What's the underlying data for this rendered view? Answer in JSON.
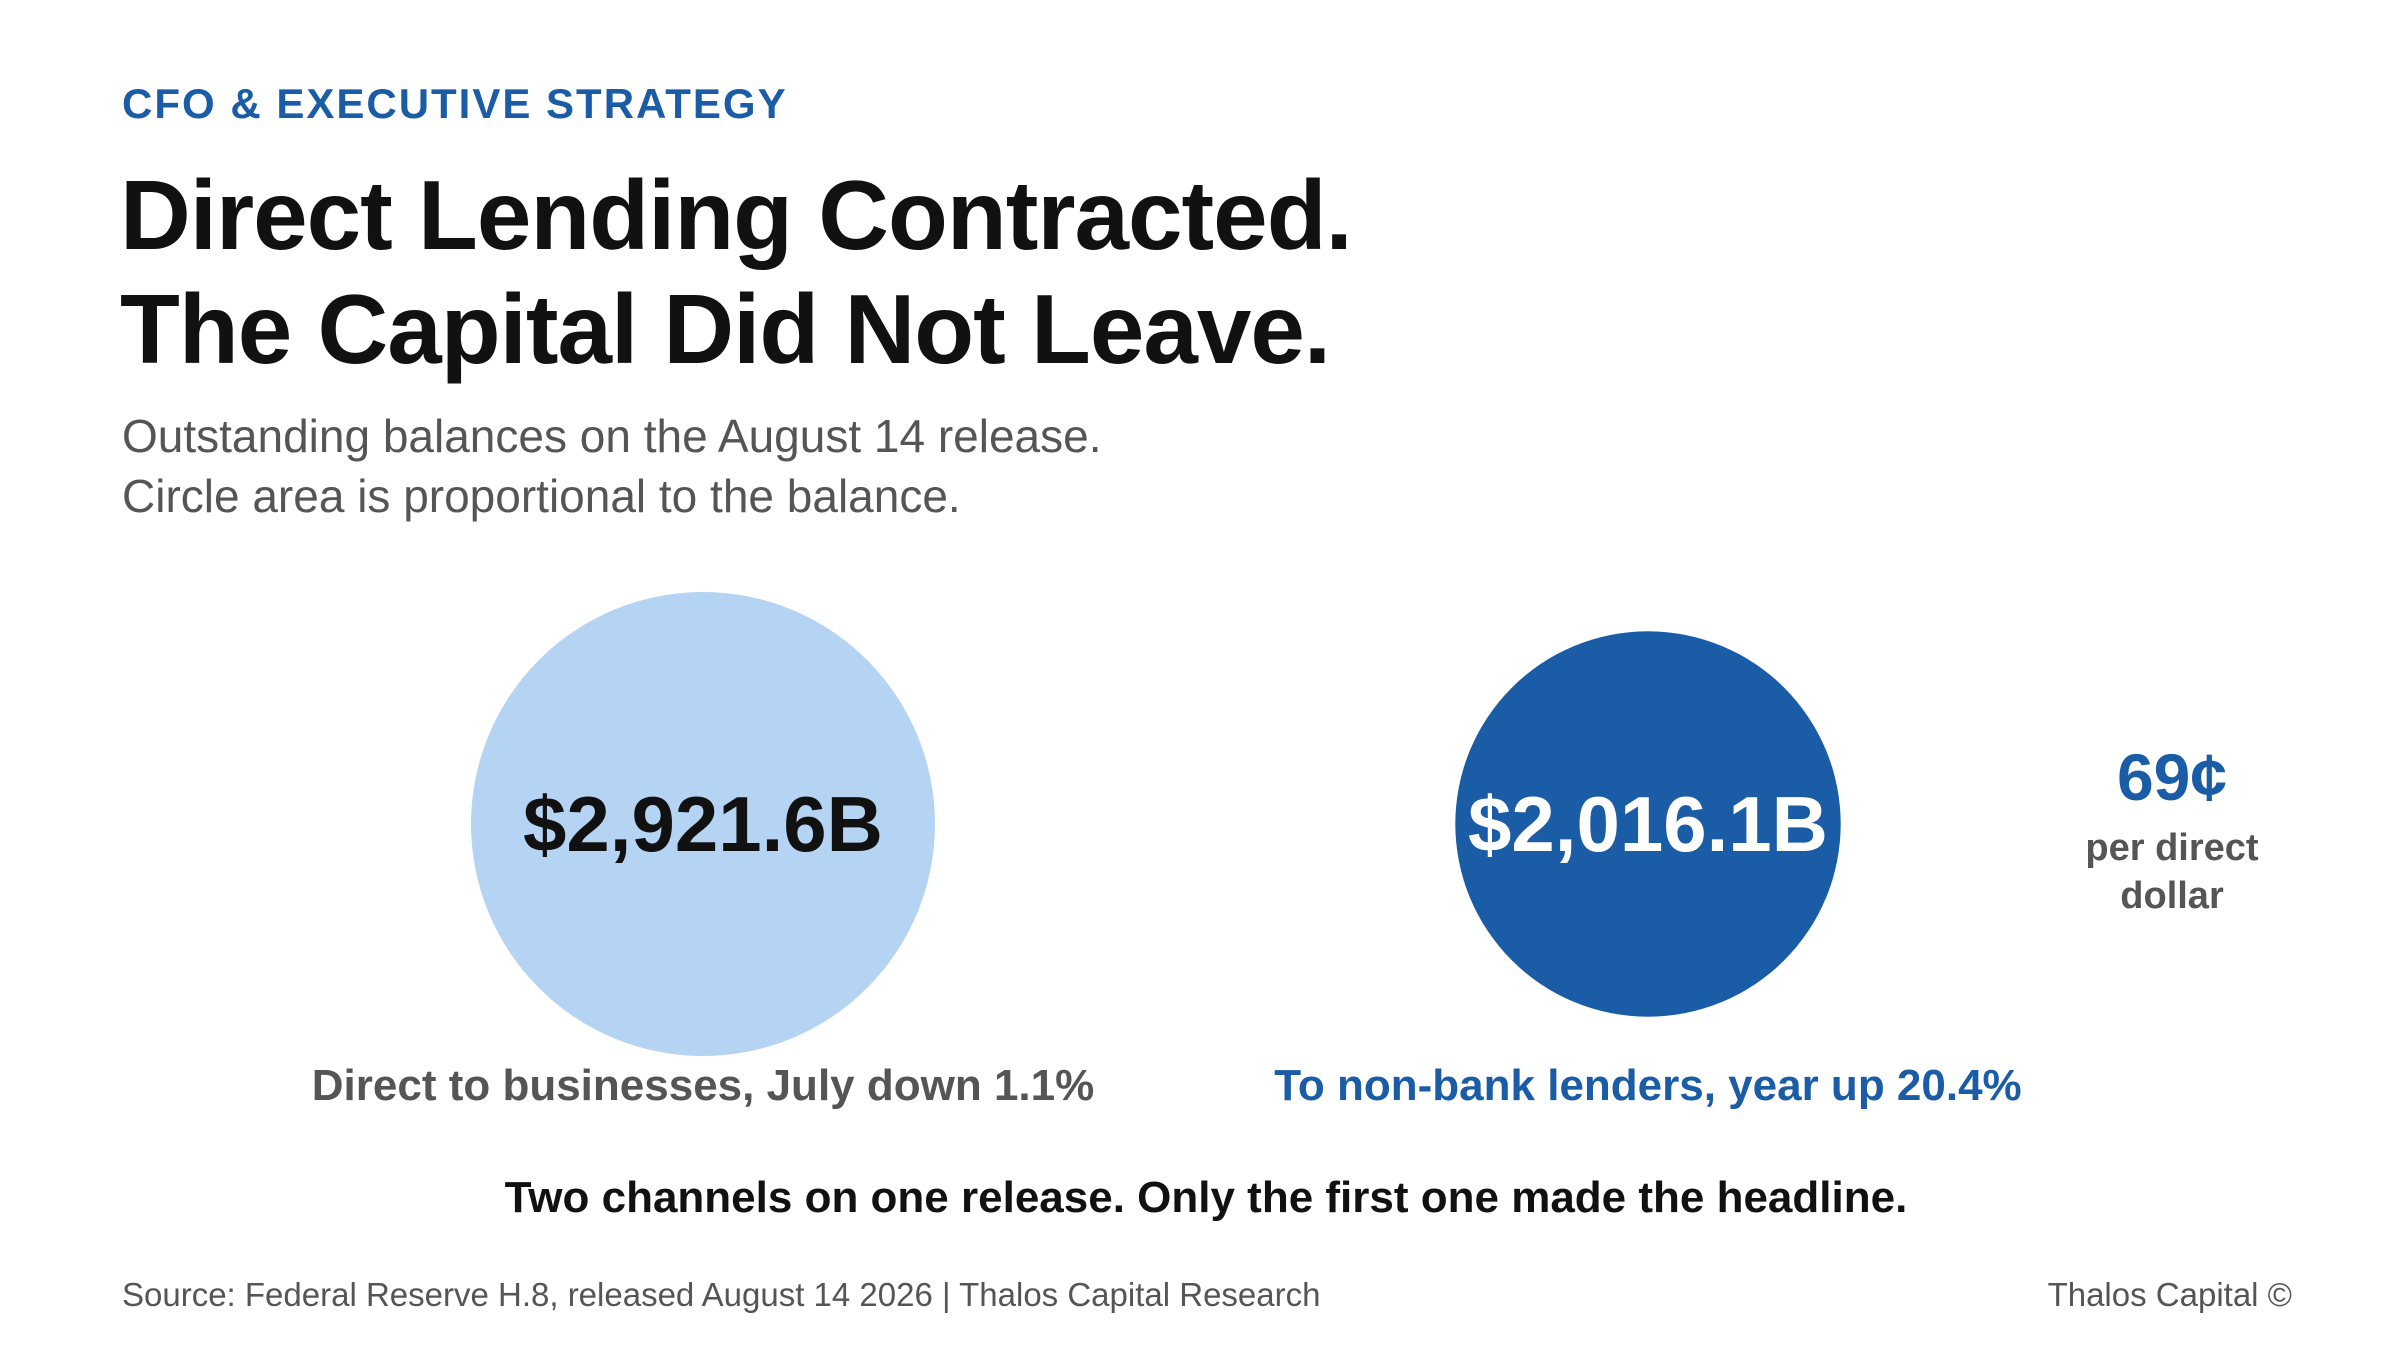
{
  "header": {
    "kicker": "CFO & EXECUTIVE STRATEGY",
    "title_line1": "Direct Lending Contracted.",
    "title_line2": "The Capital Did Not Leave.",
    "subtitle_line1": "Outstanding balances on the August 14 release.",
    "subtitle_line2": "Circle area is proportional to the balance."
  },
  "chart_data": {
    "type": "bubble",
    "title": "Direct Lending Contracted. The Capital Did Not Leave.",
    "unit": "$B",
    "series": [
      {
        "value": 2921.6,
        "value_label": "$2,921.6B",
        "caption": "Direct to businesses, July down 1.1%",
        "color": "#b5d3f3",
        "label_color": "#111111",
        "caption_color": "#555555"
      },
      {
        "value": 2016.1,
        "value_label": "$2,016.1B",
        "caption": "To non-bank lenders, year up 20.4%",
        "color": "#1a5da6",
        "label_color": "#ffffff",
        "caption_color": "#1a5da6"
      }
    ],
    "annotation": {
      "value": "69¢",
      "label_line1": "per direct",
      "label_line2": "dollar"
    },
    "takeaway": "Two channels on one release. Only the first one made the headline."
  },
  "footer": {
    "source": "Source: Federal Reserve H.8, released August 14 2026 | Thalos Capital Research",
    "brand": "Thalos Capital ©"
  },
  "colors": {
    "accent": "#1a5da6",
    "light": "#b5d3f3",
    "muted": "#555555",
    "text": "#111111"
  }
}
